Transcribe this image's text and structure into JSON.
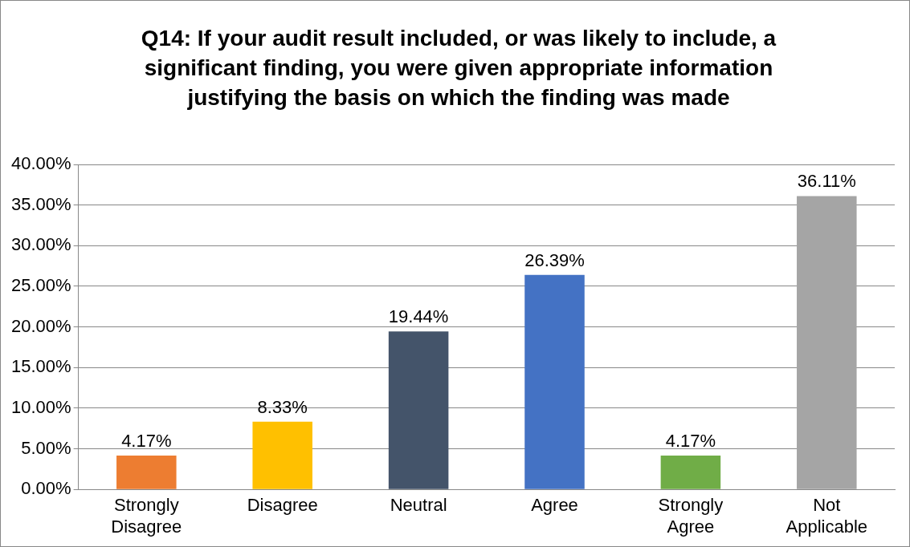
{
  "chart_data": {
    "type": "bar",
    "title": "Q14: If your audit result included, or was likely to include, a significant finding, you were given appropriate information justifying the basis on which the finding was made",
    "categories": [
      "Strongly Disagree",
      "Disagree",
      "Neutral",
      "Agree",
      "Strongly Agree",
      "Not Applicable"
    ],
    "values": [
      4.17,
      8.33,
      19.44,
      26.39,
      4.17,
      36.11
    ],
    "colors": [
      "#ed7d31",
      "#ffc000",
      "#44546a",
      "#4472c4",
      "#70ad47",
      "#a5a5a5"
    ],
    "value_labels": [
      "4.17%",
      "8.33%",
      "19.44%",
      "26.39%",
      "4.17%",
      "36.11%"
    ],
    "ylim": [
      0,
      40
    ],
    "yticks": [
      {
        "value": 0,
        "label": "0.00%"
      },
      {
        "value": 5,
        "label": "5.00%"
      },
      {
        "value": 10,
        "label": "10.00%"
      },
      {
        "value": 15,
        "label": "15.00%"
      },
      {
        "value": 20,
        "label": "20.00%"
      },
      {
        "value": 25,
        "label": "25.00%"
      },
      {
        "value": 30,
        "label": "30.00%"
      },
      {
        "value": 35,
        "label": "35.00%"
      },
      {
        "value": 40,
        "label": "40.00%"
      }
    ],
    "grid": "y",
    "legend": false
  }
}
